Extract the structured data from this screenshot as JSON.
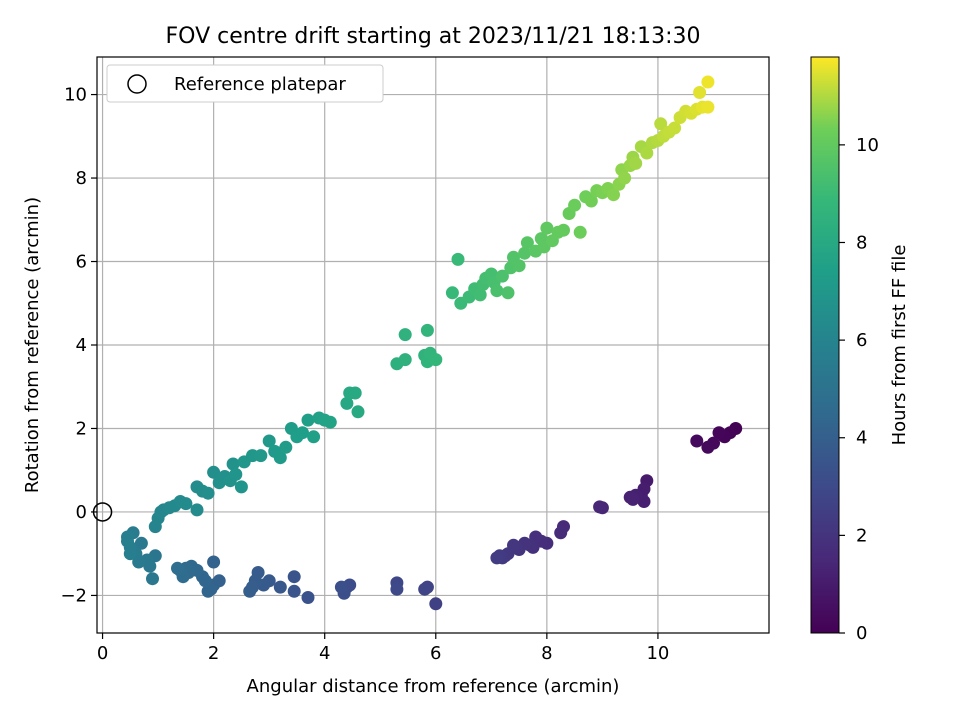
{
  "chart_data": {
    "type": "scatter",
    "title": "FOV centre drift starting at 2023/11/21 18:13:30",
    "xlabel": "Angular distance from reference (arcmin)",
    "ylabel": "Rotation from reference (arcmin)",
    "xlim": [
      -0.1,
      12.0
    ],
    "ylim": [
      -2.9,
      10.9
    ],
    "xticks": [
      0,
      2,
      4,
      6,
      8,
      10
    ],
    "yticks": [
      -2,
      0,
      2,
      4,
      6,
      8,
      10
    ],
    "grid": true,
    "legend": {
      "position": "top-left",
      "entries": [
        "Reference platepar"
      ]
    },
    "reference_point": {
      "x": 0,
      "y": 0
    },
    "colorbar": {
      "label": "Hours from first FF file",
      "colormap": "viridis",
      "range": [
        0,
        11.8
      ],
      "ticks": [
        0,
        2,
        4,
        6,
        8,
        10
      ]
    },
    "points": [
      [
        11.4,
        2.0,
        0.05
      ],
      [
        11.3,
        1.9,
        0.1
      ],
      [
        11.2,
        1.8,
        0.15
      ],
      [
        11.1,
        1.9,
        0.2
      ],
      [
        11.0,
        1.65,
        0.25
      ],
      [
        10.9,
        1.55,
        0.3
      ],
      [
        10.7,
        1.7,
        0.35
      ],
      [
        9.8,
        0.75,
        1.0
      ],
      [
        9.75,
        0.55,
        1.05
      ],
      [
        9.7,
        0.4,
        1.1
      ],
      [
        9.75,
        0.25,
        1.15
      ],
      [
        9.6,
        0.4,
        1.2
      ],
      [
        9.5,
        0.35,
        1.25
      ],
      [
        9.55,
        0.3,
        1.3
      ],
      [
        9.0,
        0.1,
        1.4
      ],
      [
        8.95,
        0.12,
        1.45
      ],
      [
        8.3,
        -0.35,
        1.6
      ],
      [
        8.25,
        -0.5,
        1.65
      ],
      [
        8.0,
        -0.75,
        1.7
      ],
      [
        7.9,
        -0.7,
        1.75
      ],
      [
        7.8,
        -0.6,
        1.8
      ],
      [
        7.75,
        -0.85,
        1.85
      ],
      [
        7.7,
        -0.8,
        1.9
      ],
      [
        7.6,
        -0.75,
        1.95
      ],
      [
        7.5,
        -0.9,
        2.0
      ],
      [
        7.45,
        -0.85,
        2.05
      ],
      [
        7.4,
        -0.8,
        2.1
      ],
      [
        7.3,
        -1.0,
        2.15
      ],
      [
        7.25,
        -1.05,
        2.2
      ],
      [
        7.2,
        -1.1,
        2.25
      ],
      [
        7.15,
        -1.05,
        2.3
      ],
      [
        7.1,
        -1.1,
        2.35
      ],
      [
        6.0,
        -2.2,
        2.6
      ],
      [
        5.85,
        -1.8,
        2.7
      ],
      [
        5.8,
        -1.85,
        2.75
      ],
      [
        5.3,
        -1.7,
        2.9
      ],
      [
        5.3,
        -1.85,
        2.95
      ],
      [
        4.45,
        -1.75,
        3.1
      ],
      [
        4.4,
        -1.8,
        3.15
      ],
      [
        4.35,
        -1.95,
        3.2
      ],
      [
        4.3,
        -1.8,
        3.25
      ],
      [
        3.7,
        -2.05,
        3.4
      ],
      [
        3.45,
        -1.55,
        3.45
      ],
      [
        3.45,
        -1.9,
        3.5
      ],
      [
        3.2,
        -1.8,
        3.6
      ],
      [
        3.0,
        -1.65,
        3.7
      ],
      [
        2.9,
        -1.75,
        3.75
      ],
      [
        2.8,
        -1.45,
        3.8
      ],
      [
        2.75,
        -1.65,
        3.85
      ],
      [
        2.7,
        -1.8,
        3.9
      ],
      [
        2.65,
        -1.9,
        3.95
      ],
      [
        2.1,
        -1.65,
        4.1
      ],
      [
        2.0,
        -1.2,
        4.15
      ],
      [
        2.0,
        -1.75,
        4.2
      ],
      [
        1.95,
        -1.85,
        4.25
      ],
      [
        1.9,
        -1.9,
        4.3
      ],
      [
        1.85,
        -1.65,
        4.35
      ],
      [
        1.8,
        -1.55,
        4.4
      ],
      [
        1.7,
        -1.4,
        4.45
      ],
      [
        1.6,
        -1.3,
        4.5
      ],
      [
        1.55,
        -1.45,
        4.55
      ],
      [
        1.5,
        -1.35,
        4.6
      ],
      [
        1.45,
        -1.55,
        4.65
      ],
      [
        1.4,
        -1.4,
        4.7
      ],
      [
        1.35,
        -1.35,
        4.75
      ],
      [
        0.95,
        -1.05,
        5.2
      ],
      [
        0.9,
        -1.6,
        5.25
      ],
      [
        0.85,
        -1.3,
        5.3
      ],
      [
        0.8,
        -1.15,
        5.35
      ],
      [
        0.7,
        -0.75,
        5.4
      ],
      [
        0.65,
        -1.2,
        5.45
      ],
      [
        0.6,
        -1.0,
        5.5
      ],
      [
        0.55,
        -0.5,
        5.55
      ],
      [
        0.5,
        -0.85,
        5.6
      ],
      [
        0.45,
        -0.6,
        5.65
      ],
      [
        0.5,
        -1.0,
        5.7
      ],
      [
        0.45,
        -0.7,
        5.75
      ],
      [
        0.95,
        -0.35,
        6.0
      ],
      [
        1.0,
        -0.15,
        6.05
      ],
      [
        1.05,
        0.0,
        6.1
      ],
      [
        1.1,
        0.05,
        6.15
      ],
      [
        1.2,
        0.1,
        6.2
      ],
      [
        1.3,
        0.15,
        6.25
      ],
      [
        1.4,
        0.25,
        6.3
      ],
      [
        1.5,
        0.2,
        6.35
      ],
      [
        1.7,
        0.05,
        6.4
      ],
      [
        1.7,
        0.6,
        6.45
      ],
      [
        1.8,
        0.5,
        6.5
      ],
      [
        1.9,
        0.45,
        6.55
      ],
      [
        2.0,
        0.95,
        6.6
      ],
      [
        2.1,
        0.7,
        6.65
      ],
      [
        2.2,
        0.85,
        6.7
      ],
      [
        2.3,
        0.75,
        6.75
      ],
      [
        2.35,
        1.15,
        6.8
      ],
      [
        2.4,
        0.9,
        6.85
      ],
      [
        2.5,
        0.6,
        6.9
      ],
      [
        2.55,
        1.2,
        6.95
      ],
      [
        2.7,
        1.35,
        7.0
      ],
      [
        2.85,
        1.35,
        7.05
      ],
      [
        3.0,
        1.7,
        7.1
      ],
      [
        3.1,
        1.45,
        7.15
      ],
      [
        3.2,
        1.3,
        7.2
      ],
      [
        3.3,
        1.55,
        7.25
      ],
      [
        3.4,
        2.0,
        7.3
      ],
      [
        3.5,
        1.8,
        7.35
      ],
      [
        3.6,
        1.9,
        7.4
      ],
      [
        3.7,
        2.2,
        7.45
      ],
      [
        3.8,
        1.8,
        7.5
      ],
      [
        3.9,
        2.25,
        7.55
      ],
      [
        4.0,
        2.2,
        7.6
      ],
      [
        4.1,
        2.15,
        7.65
      ],
      [
        4.4,
        2.6,
        7.9
      ],
      [
        4.45,
        2.85,
        7.95
      ],
      [
        4.55,
        2.85,
        8.0
      ],
      [
        4.6,
        2.4,
        8.05
      ],
      [
        5.3,
        3.55,
        8.4
      ],
      [
        5.45,
        3.65,
        8.45
      ],
      [
        5.45,
        4.25,
        8.5
      ],
      [
        5.8,
        3.75,
        8.55
      ],
      [
        5.85,
        3.6,
        8.6
      ],
      [
        5.85,
        4.35,
        8.65
      ],
      [
        5.9,
        3.8,
        8.7
      ],
      [
        6.0,
        3.65,
        8.75
      ],
      [
        6.3,
        5.25,
        8.9
      ],
      [
        6.4,
        6.05,
        8.95
      ],
      [
        6.45,
        5.0,
        9.0
      ],
      [
        6.6,
        5.15,
        9.05
      ],
      [
        6.7,
        5.35,
        9.1
      ],
      [
        6.8,
        5.2,
        9.15
      ],
      [
        6.85,
        5.45,
        9.2
      ],
      [
        6.9,
        5.6,
        9.25
      ],
      [
        7.0,
        5.7,
        9.3
      ],
      [
        7.05,
        5.5,
        9.35
      ],
      [
        7.1,
        5.3,
        9.4
      ],
      [
        7.2,
        5.65,
        9.45
      ],
      [
        7.3,
        5.25,
        9.5
      ],
      [
        7.35,
        5.85,
        9.55
      ],
      [
        7.4,
        6.1,
        9.6
      ],
      [
        7.5,
        5.9,
        9.65
      ],
      [
        7.6,
        6.2,
        9.7
      ],
      [
        7.65,
        6.45,
        9.75
      ],
      [
        7.8,
        6.25,
        9.8
      ],
      [
        7.9,
        6.55,
        9.85
      ],
      [
        7.95,
        6.35,
        9.9
      ],
      [
        8.0,
        6.8,
        9.95
      ],
      [
        8.1,
        6.5,
        10.0
      ],
      [
        8.2,
        6.7,
        10.05
      ],
      [
        8.3,
        6.75,
        10.1
      ],
      [
        8.4,
        7.15,
        10.15
      ],
      [
        8.5,
        7.35,
        10.2
      ],
      [
        8.6,
        6.7,
        10.25
      ],
      [
        8.7,
        7.55,
        10.3
      ],
      [
        8.8,
        7.45,
        10.35
      ],
      [
        8.9,
        7.7,
        10.4
      ],
      [
        9.0,
        7.65,
        10.45
      ],
      [
        9.1,
        7.75,
        10.5
      ],
      [
        9.2,
        7.6,
        10.55
      ],
      [
        9.3,
        7.85,
        10.6
      ],
      [
        9.35,
        8.2,
        10.65
      ],
      [
        9.4,
        8.0,
        10.7
      ],
      [
        9.5,
        8.3,
        10.75
      ],
      [
        9.55,
        8.5,
        10.8
      ],
      [
        9.6,
        8.35,
        10.85
      ],
      [
        9.7,
        8.75,
        10.9
      ],
      [
        9.8,
        8.6,
        10.95
      ],
      [
        9.9,
        8.85,
        11.0
      ],
      [
        10.0,
        8.9,
        11.05
      ],
      [
        10.05,
        9.3,
        11.1
      ],
      [
        10.1,
        9.0,
        11.15
      ],
      [
        10.2,
        9.1,
        11.2
      ],
      [
        10.3,
        9.2,
        11.25
      ],
      [
        10.4,
        9.45,
        11.3
      ],
      [
        10.5,
        9.6,
        11.35
      ],
      [
        10.6,
        9.55,
        11.4
      ],
      [
        10.7,
        9.65,
        11.45
      ],
      [
        10.75,
        10.05,
        11.5
      ],
      [
        10.8,
        9.7,
        11.55
      ],
      [
        10.9,
        9.7,
        11.6
      ],
      [
        10.9,
        10.3,
        11.65
      ]
    ]
  }
}
